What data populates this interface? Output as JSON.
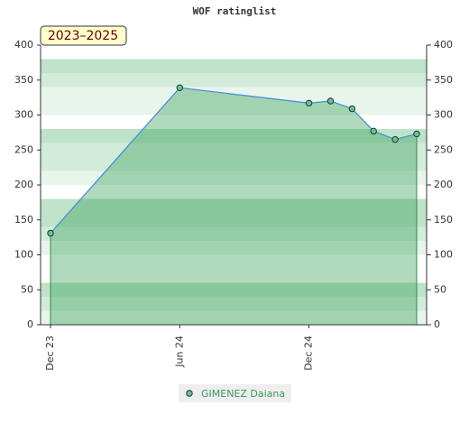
{
  "chart_data": {
    "type": "line",
    "title": "WOF ratinglist",
    "badge": "2023–2025",
    "x": [
      "2023-12",
      "2024-06",
      "2024-12",
      "2025-01",
      "2025-02",
      "2025-03",
      "2025-04",
      "2025-05"
    ],
    "xticks": [
      {
        "value": "2023-12",
        "label": "Dec 23"
      },
      {
        "value": "2024-06",
        "label": "Jun 24"
      },
      {
        "value": "2024-12",
        "label": "Dec 24"
      }
    ],
    "series": [
      {
        "name": "GIMENEZ Daiana",
        "color": "#4a90d9",
        "marker_color": "#6cc487",
        "values": [
          131,
          339,
          317,
          320,
          309,
          277,
          265,
          273
        ]
      }
    ],
    "ylim": [
      0,
      400
    ],
    "yticks": [
      0,
      50,
      100,
      150,
      200,
      250,
      300,
      350,
      400
    ]
  }
}
